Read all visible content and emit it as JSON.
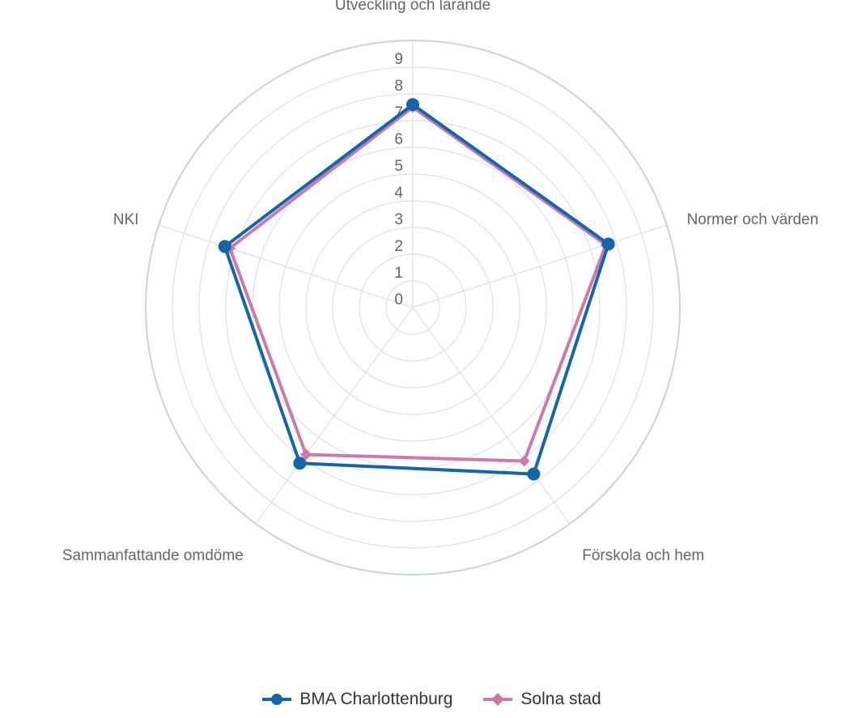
{
  "chart_data": {
    "type": "radar",
    "categories": [
      "Utveckling och lärande",
      "Normer och värden",
      "Förskola och hem",
      "Sammanfattande omdöme",
      "NKI"
    ],
    "rlim": [
      0,
      10
    ],
    "ticks": [
      "0",
      "1",
      "2",
      "3",
      "4",
      "5",
      "6",
      "7",
      "8",
      "9"
    ],
    "grid": true,
    "legend_position": "bottom-center",
    "series": [
      {
        "name": "BMA Charlottenburg",
        "color": "#1565a8",
        "marker": "circle",
        "values": [
          7.6,
          7.7,
          7.7,
          7.2,
          7.4
        ]
      },
      {
        "name": "Solna stad",
        "color": "#cc7aac",
        "marker": "diamond",
        "values": [
          7.5,
          7.6,
          7.1,
          6.8,
          7.2
        ]
      }
    ]
  },
  "legend": {
    "items": [
      "BMA Charlottenburg",
      "Solna stad"
    ]
  }
}
